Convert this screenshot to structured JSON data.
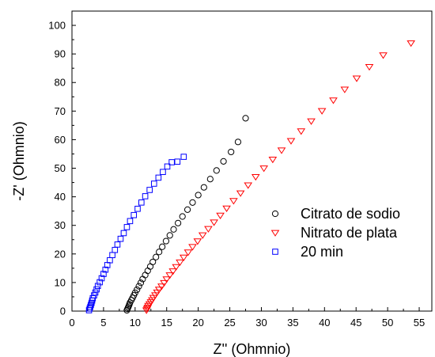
{
  "chart_data": {
    "type": "scatter",
    "xlabel": "Z'' (Ohmnio)",
    "ylabel": "-Z' (Ohmnio)",
    "xlim": [
      0,
      57
    ],
    "ylim": [
      0,
      105
    ],
    "xticks": [
      0,
      5,
      10,
      15,
      20,
      25,
      30,
      35,
      40,
      45,
      50,
      55
    ],
    "yticks": [
      0,
      10,
      20,
      30,
      40,
      50,
      60,
      70,
      80,
      90,
      100
    ],
    "legend_position": "bottom-right",
    "series": [
      {
        "name": "Citrato de sodio",
        "marker": "circle",
        "color": "#000000",
        "x": [
          8.7,
          8.8,
          8.9,
          9.0,
          9.1,
          9.2,
          9.4,
          9.6,
          9.8,
          10.0,
          10.3,
          10.6,
          10.9,
          11.2,
          11.6,
          12.0,
          12.4,
          12.8,
          13.3,
          13.8,
          14.3,
          14.9,
          15.5,
          16.1,
          16.8,
          17.5,
          18.3,
          19.1,
          20.0,
          20.9,
          21.9,
          22.9,
          24.0,
          25.2,
          26.3,
          27.5
        ],
        "y": [
          0.3,
          0.8,
          1.3,
          1.8,
          2.4,
          3.0,
          3.8,
          4.6,
          5.5,
          6.4,
          7.5,
          8.7,
          9.9,
          11.2,
          12.6,
          14.1,
          15.6,
          17.2,
          18.9,
          20.7,
          22.5,
          24.5,
          26.5,
          28.6,
          30.8,
          33.1,
          35.5,
          38.0,
          40.6,
          43.3,
          46.2,
          49.2,
          52.4,
          55.7,
          59.2,
          67.5
        ]
      },
      {
        "name": "Nitrato de plata",
        "marker": "triangle-down",
        "color": "#ff0000",
        "x": [
          11.8,
          11.9,
          12.0,
          12.1,
          12.3,
          12.5,
          12.7,
          12.9,
          13.2,
          13.5,
          13.8,
          14.2,
          14.6,
          15.0,
          15.5,
          16.0,
          16.5,
          17.1,
          17.7,
          18.4,
          19.1,
          19.9,
          20.7,
          21.6,
          22.5,
          23.5,
          24.5,
          25.6,
          26.7,
          27.9,
          29.1,
          30.4,
          31.8,
          33.2,
          34.7,
          36.3,
          37.9,
          39.6,
          41.4,
          43.2,
          45.1,
          47.1,
          49.3,
          53.7
        ],
        "y": [
          0.3,
          0.8,
          1.3,
          1.9,
          2.5,
          3.2,
          3.9,
          4.7,
          5.6,
          6.6,
          7.6,
          8.7,
          9.9,
          11.2,
          12.6,
          14.0,
          15.5,
          17.1,
          18.8,
          20.6,
          22.5,
          24.5,
          26.6,
          28.8,
          31.1,
          33.5,
          36.0,
          38.6,
          41.3,
          44.1,
          47.0,
          50.0,
          53.1,
          56.3,
          59.6,
          63.0,
          66.5,
          70.1,
          73.8,
          77.6,
          81.5,
          85.5,
          89.6,
          93.8
        ]
      },
      {
        "name": "20 min",
        "marker": "square",
        "color": "#0000ff",
        "x": [
          2.7,
          2.8,
          2.9,
          3.0,
          3.1,
          3.2,
          3.3,
          3.5,
          3.7,
          3.9,
          4.1,
          4.4,
          4.7,
          5.0,
          5.3,
          5.6,
          6.0,
          6.4,
          6.8,
          7.2,
          7.7,
          8.2,
          8.7,
          9.2,
          9.8,
          10.4,
          11.0,
          11.6,
          12.3,
          13.0,
          13.7,
          14.4,
          15.1,
          15.8,
          16.7,
          17.7
        ],
        "y": [
          0.3,
          0.9,
          1.5,
          2.2,
          2.9,
          3.7,
          4.5,
          5.5,
          6.5,
          7.6,
          8.8,
          10.1,
          11.5,
          13.0,
          14.5,
          16.1,
          17.8,
          19.6,
          21.4,
          23.3,
          25.3,
          27.3,
          29.4,
          31.5,
          33.6,
          35.8,
          38.0,
          40.2,
          42.4,
          44.6,
          46.7,
          48.7,
          50.6,
          52.1,
          52.3,
          54.0
        ]
      }
    ]
  }
}
